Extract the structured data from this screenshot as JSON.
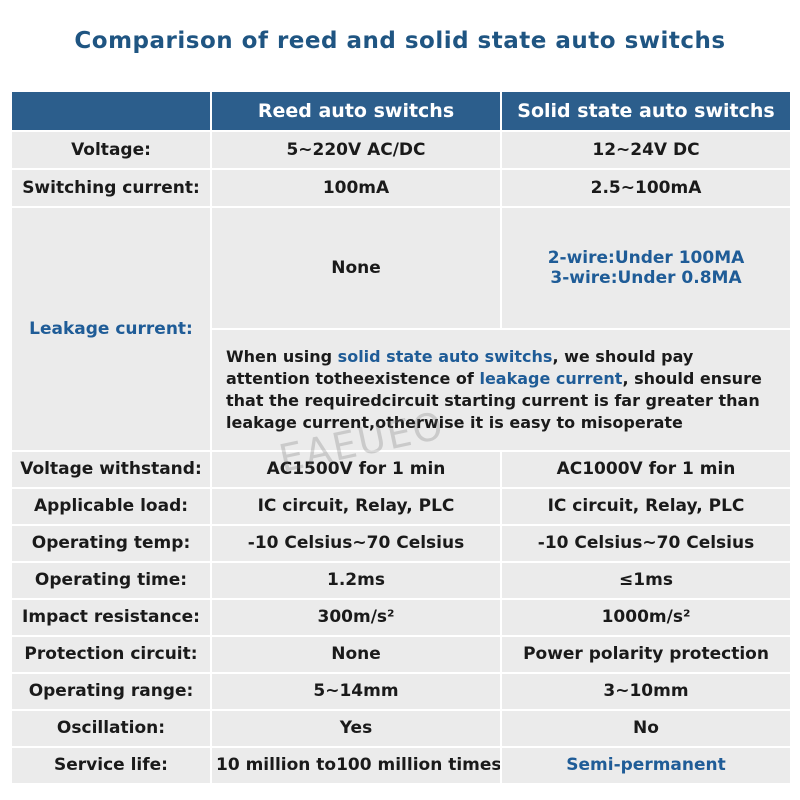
{
  "title": "Comparison of reed and solid state auto switchs",
  "header": {
    "col1": "",
    "col2": "Reed auto switchs",
    "col3": "Solid state auto switchs"
  },
  "rows": [
    {
      "label": "Voltage:",
      "reed": "5~220V AC/DC",
      "solid": "12~24V DC"
    },
    {
      "label": "Switching current:",
      "reed": "100mA",
      "solid": "2.5~100mA"
    }
  ],
  "leakage": {
    "label": "Leakage current:",
    "reed": "None",
    "solid_line1": "2-wire:Under 100MA",
    "solid_line2": "3-wire:Under 0.8MA",
    "note": {
      "p1": "When using ",
      "h1": "solid state auto switchs",
      "p2": ", we should pay attention totheexistence of ",
      "h2": "leakage current",
      "p3": ", should ensure that the requiredcircuit starting current is far greater than leakage current,otherwise it is easy to misoperate"
    }
  },
  "rows2": [
    {
      "label": "Voltage withstand:",
      "reed": "AC1500V for 1 min",
      "solid": "AC1000V for 1 min"
    },
    {
      "label": "Applicable load:",
      "reed": "IC circuit, Relay, PLC",
      "solid": "IC circuit, Relay, PLC"
    },
    {
      "label": "Operating temp:",
      "reed": "-10 Celsius~70 Celsius",
      "solid": "-10 Celsius~70 Celsius"
    },
    {
      "label": "Operating time:",
      "reed": "1.2ms",
      "solid": "≤1ms"
    },
    {
      "label": "Impact resistance:",
      "reed": "300m/s²",
      "solid": "1000m/s²"
    },
    {
      "label": "Protection circuit:",
      "reed": "None",
      "solid": "Power polarity protection"
    },
    {
      "label": "Operating range:",
      "reed": "5~14mm",
      "solid": "3~10mm"
    },
    {
      "label": "Oscillation:",
      "reed": "Yes",
      "solid": "No"
    },
    {
      "label": "Service life:",
      "reed": "10 million to100 million times",
      "solid": "Semi-permanent"
    }
  ],
  "watermark": "EAEUEO",
  "colors": {
    "title": "#1f5582",
    "header_bg": "#2c5e8c",
    "cell_bg": "#ebebeb",
    "highlight_text": "#1f5c97"
  }
}
